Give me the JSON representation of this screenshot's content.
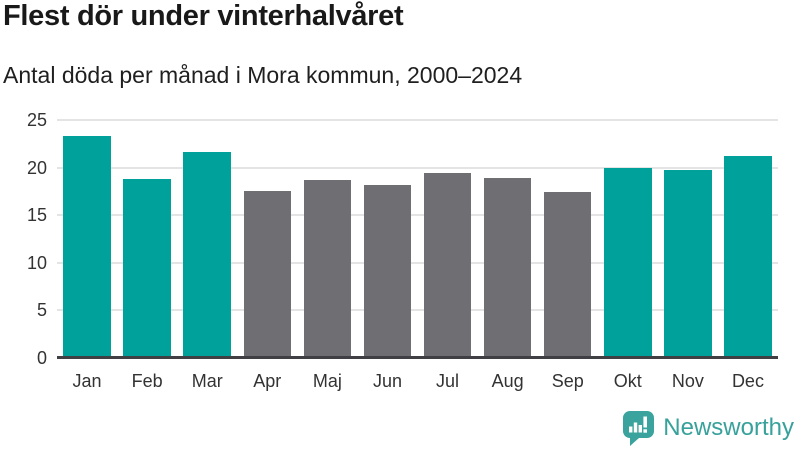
{
  "header": {
    "title": "Flest dör under vinterhalvåret",
    "subtitle": "Antal döda per månad i Mora kommun, 2000–2024"
  },
  "chart_data": {
    "type": "bar",
    "title": "Flest dör under vinterhalvåret",
    "subtitle": "Antal döda per månad i Mora kommun, 2000–2024",
    "categories": [
      "Jan",
      "Feb",
      "Mar",
      "Apr",
      "Maj",
      "Jun",
      "Jul",
      "Aug",
      "Sep",
      "Okt",
      "Nov",
      "Dec"
    ],
    "values": [
      23.3,
      18.8,
      21.6,
      17.5,
      18.7,
      18.2,
      19.4,
      18.9,
      17.4,
      20.0,
      19.8,
      21.2
    ],
    "bar_color_keys": [
      "teal",
      "teal",
      "teal",
      "gray",
      "gray",
      "gray",
      "gray",
      "gray",
      "gray",
      "teal",
      "teal",
      "teal"
    ],
    "colors": {
      "teal": "#00a09b",
      "gray": "#6e6e73",
      "gridline": "#e4e4e4",
      "axis": "#3f3f44",
      "tick_text": "#333333"
    },
    "xlabel": "",
    "ylabel": "",
    "ylim": [
      0,
      25
    ],
    "yticks": [
      0,
      5,
      10,
      15,
      20,
      25
    ],
    "grid": "horizontal",
    "legend": "none",
    "highlight_meaning": "teal = winter half-year months, gray = summer half-year months"
  },
  "footer": {
    "brand": "Newsworthy",
    "brand_color": "#38a19b",
    "logo_icon": "speech-bubble-bar-chart-icon"
  }
}
